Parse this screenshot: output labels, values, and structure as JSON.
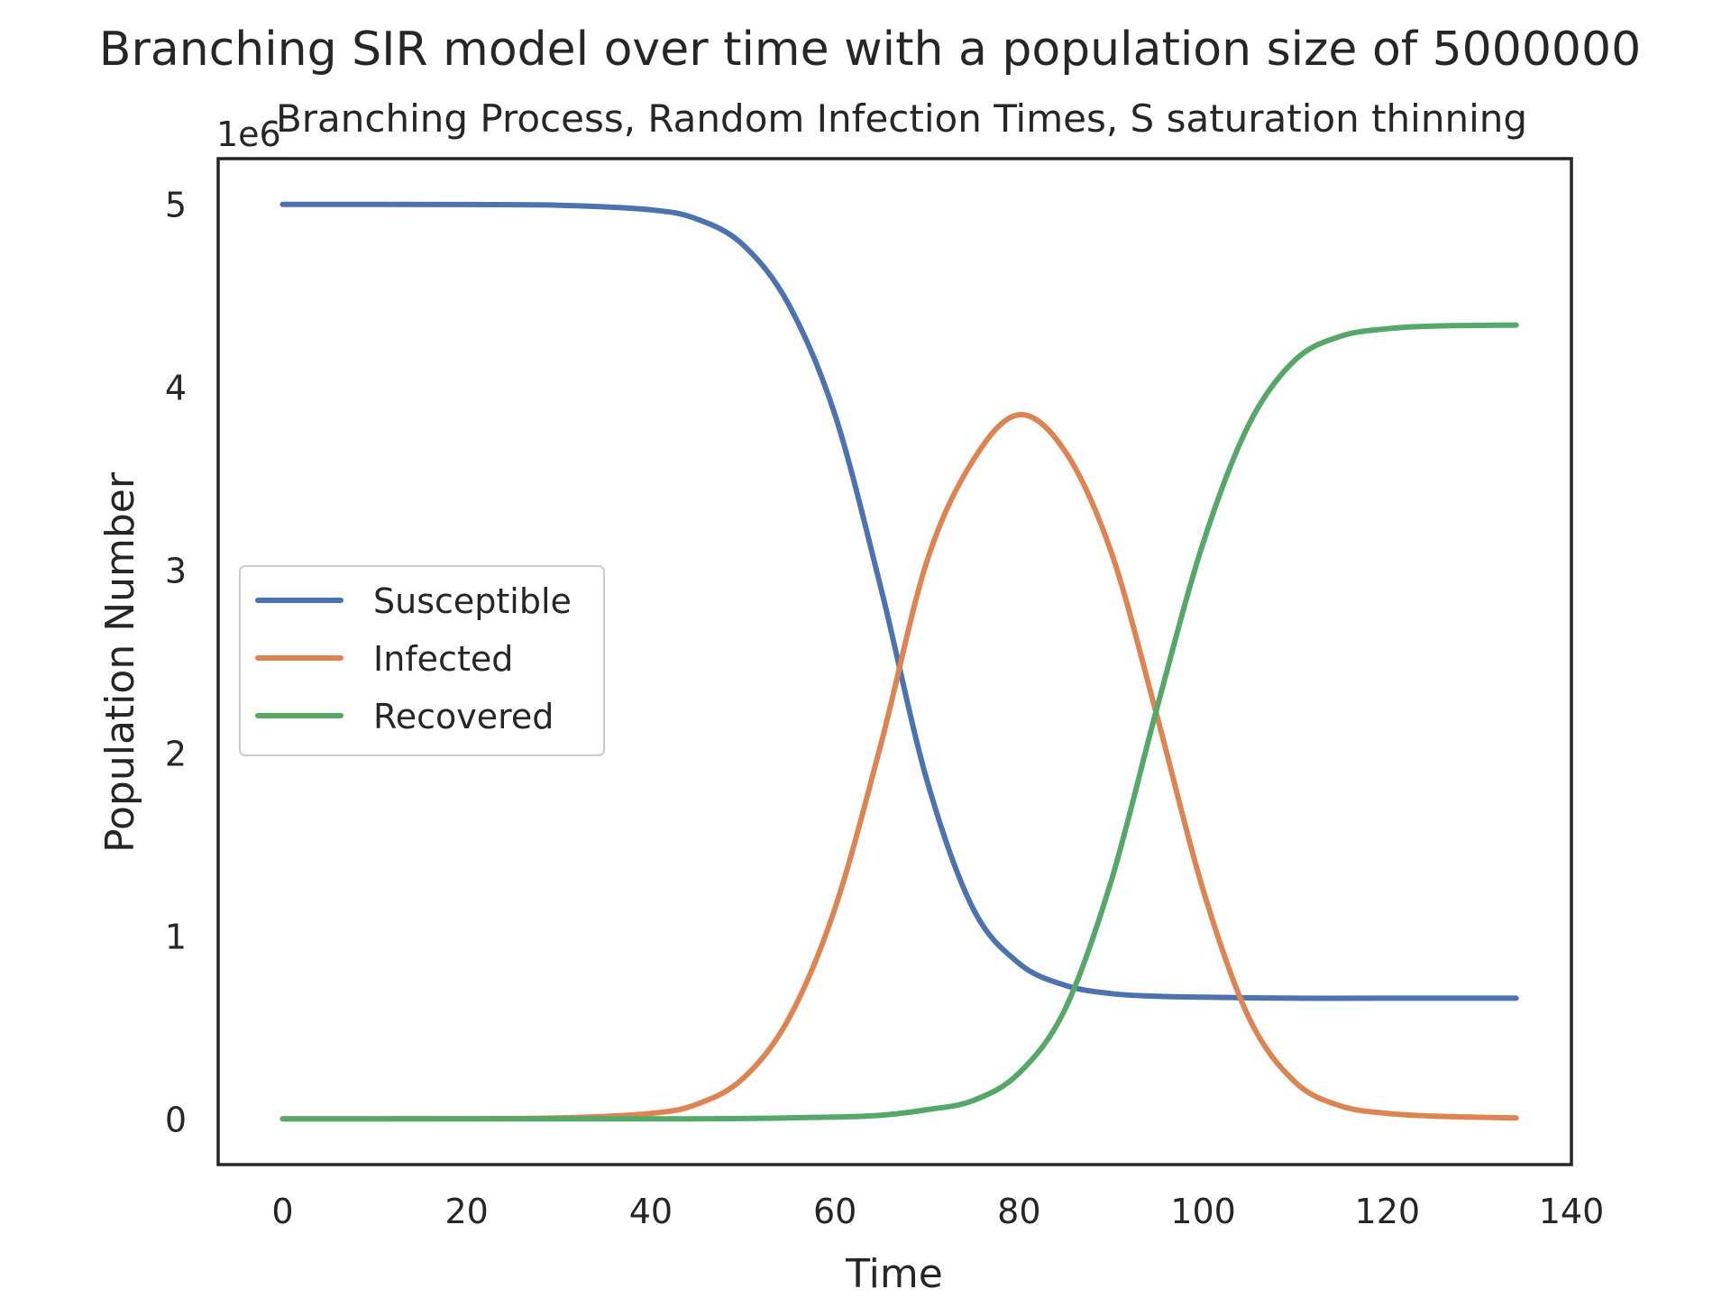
{
  "chart_data": {
    "type": "line",
    "suptitle": "Branching SIR model over time with a population size of 5000000",
    "title": "Branching Process, Random Infection Times, S saturation thinning",
    "xlabel": "Time",
    "ylabel": "Population Number",
    "y_offset_label": "1e6",
    "xlim": [
      -7,
      140
    ],
    "ylim": [
      -0.25,
      5.25
    ],
    "xticks": [
      0,
      20,
      40,
      60,
      80,
      100,
      120,
      140
    ],
    "yticks": [
      0,
      1,
      2,
      3,
      4,
      5
    ],
    "grid": false,
    "legend_position": "center-left",
    "series": [
      {
        "name": "Susceptible",
        "color": "#4c72b0",
        "x": [
          0,
          20,
          30,
          40,
          45,
          50,
          55,
          60,
          65,
          70,
          75,
          80,
          85,
          90,
          95,
          100,
          110,
          120,
          134
        ],
        "y": [
          5.0,
          4.999,
          4.995,
          4.97,
          4.92,
          4.78,
          4.45,
          3.85,
          2.9,
          1.85,
          1.15,
          0.85,
          0.73,
          0.685,
          0.67,
          0.665,
          0.66,
          0.66,
          0.66
        ]
      },
      {
        "name": "Infected",
        "color": "#dd8452",
        "x": [
          0,
          20,
          30,
          40,
          45,
          50,
          55,
          60,
          65,
          70,
          75,
          80,
          85,
          90,
          95,
          100,
          105,
          110,
          115,
          120,
          125,
          134
        ],
        "y": [
          0.0,
          0.001,
          0.005,
          0.03,
          0.08,
          0.22,
          0.55,
          1.15,
          2.05,
          3.05,
          3.6,
          3.85,
          3.65,
          3.1,
          2.2,
          1.25,
          0.55,
          0.2,
          0.07,
          0.03,
          0.015,
          0.005
        ]
      },
      {
        "name": "Recovered",
        "color": "#55a868",
        "x": [
          0,
          20,
          40,
          50,
          60,
          65,
          70,
          75,
          80,
          85,
          90,
          95,
          100,
          105,
          110,
          115,
          120,
          125,
          134
        ],
        "y": [
          0.0,
          0.0,
          0.0,
          0.002,
          0.01,
          0.02,
          0.05,
          0.1,
          0.25,
          0.6,
          1.3,
          2.25,
          3.15,
          3.8,
          4.15,
          4.28,
          4.32,
          4.335,
          4.34
        ]
      }
    ]
  }
}
